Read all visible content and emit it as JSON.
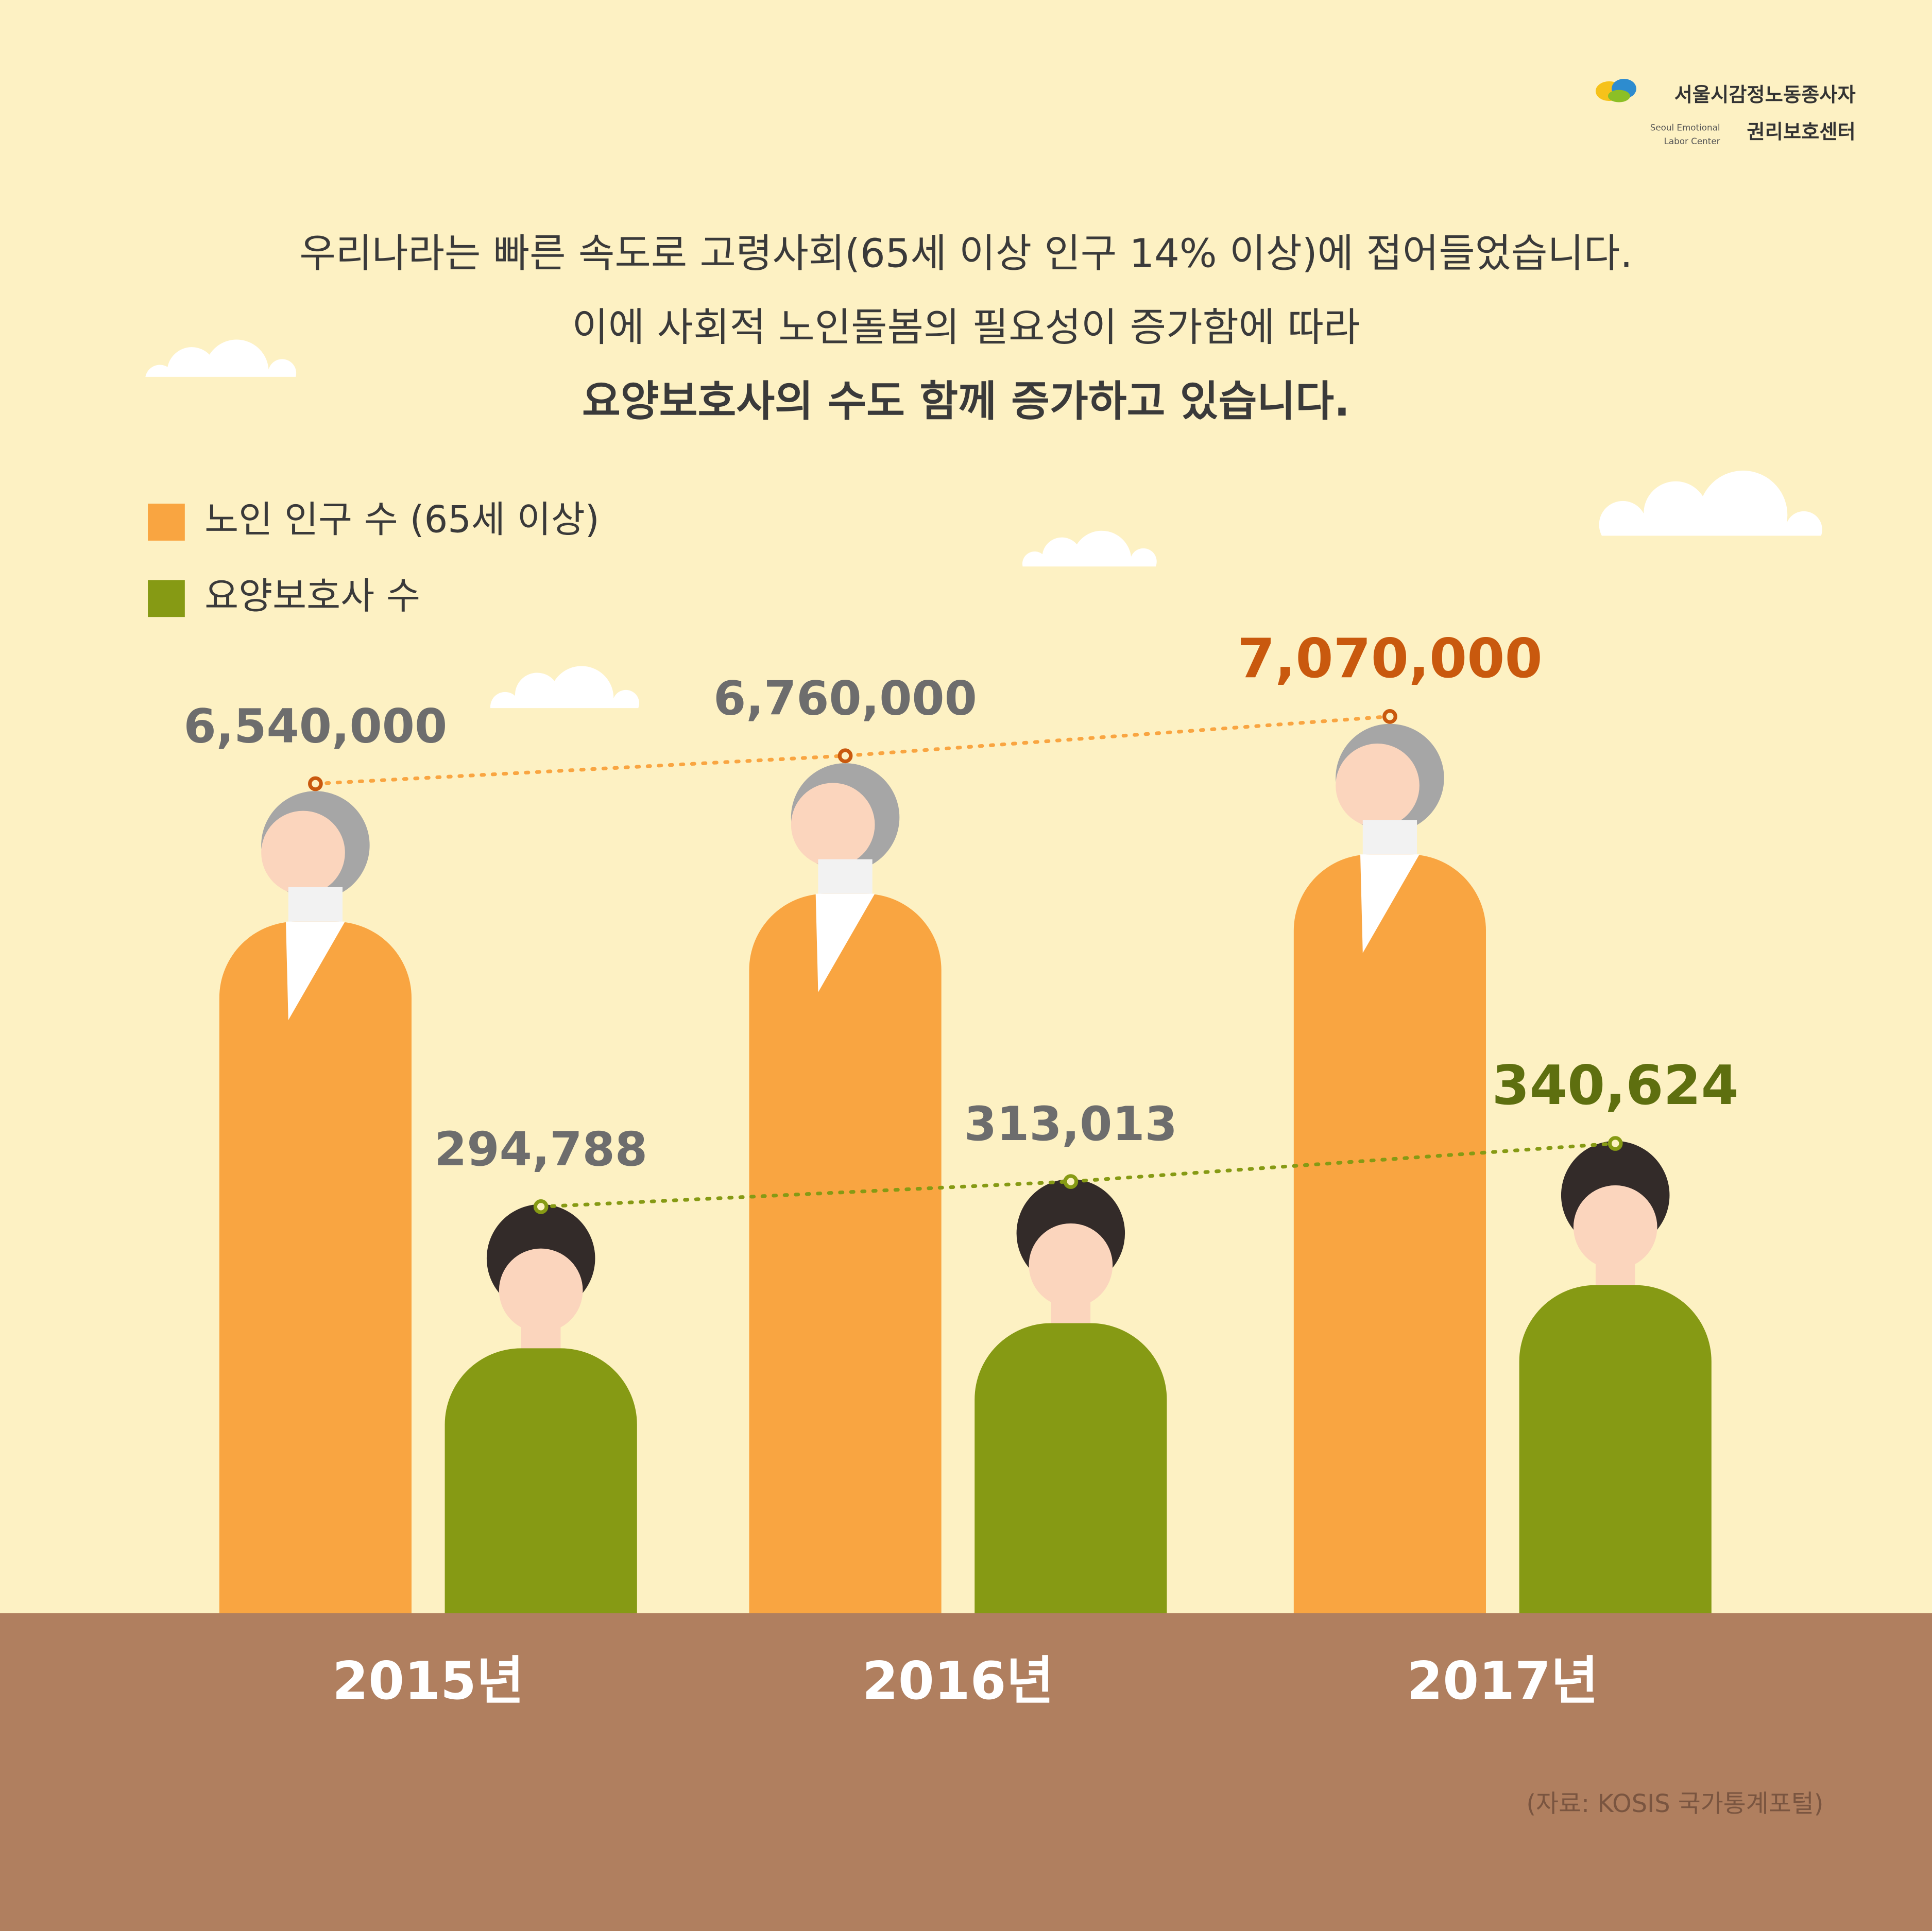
{
  "header": {
    "logo_line1": "서울시감정노동종사자",
    "logo_line2": "권리보호센터",
    "logo_en_1": "Seoul Emotional",
    "logo_en_2": "Labor Center",
    "title_lines": [
      "우리나라는 빠른 속도로 고령사회(65세 이상 인구 14% 이상)에 접어들었습니다.",
      "이에 사회적 노인돌봄의 필요성이 증가함에 따라",
      "요양보호사의 수도 함께 증가하고 있습니다."
    ]
  },
  "chart_data": {
    "type": "bar",
    "categories": [
      "2015년",
      "2016년",
      "2017년"
    ],
    "label_color": "#6d6d6d",
    "series": [
      {
        "name": "노인 인구 수 (65세 이상)",
        "color": "#f9a541",
        "highlight_color": "#c9590e",
        "values": [
          6540000,
          6760000,
          7070000
        ],
        "value_labels": [
          "6,540,000",
          "6,760,000",
          "7,070,000"
        ]
      },
      {
        "name": "요양보호사 수",
        "color": "#869a14",
        "highlight_color": "#5e6f0f",
        "values": [
          294788,
          313013,
          340624
        ],
        "value_labels": [
          "294,788",
          "313,013",
          "340,624"
        ]
      }
    ],
    "source": "(자료: KOSIS 국가통계포털)"
  }
}
